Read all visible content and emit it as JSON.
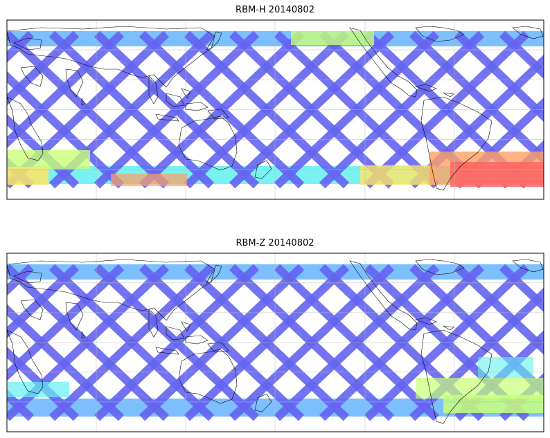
{
  "panels": [
    {
      "title": "RBM-H 20140802"
    },
    {
      "title": "RBM-Z 20140802"
    }
  ],
  "colors": {
    "low": "#6464f0",
    "mid_low": "#64b4ff",
    "mid": "#64f0f0",
    "mid_high": "#c8ff78",
    "high_yellow": "#ffe664",
    "high_orange": "#ffa064",
    "max": "#ff6464",
    "grid": "#bbbbbb",
    "coast": "#000000"
  }
}
